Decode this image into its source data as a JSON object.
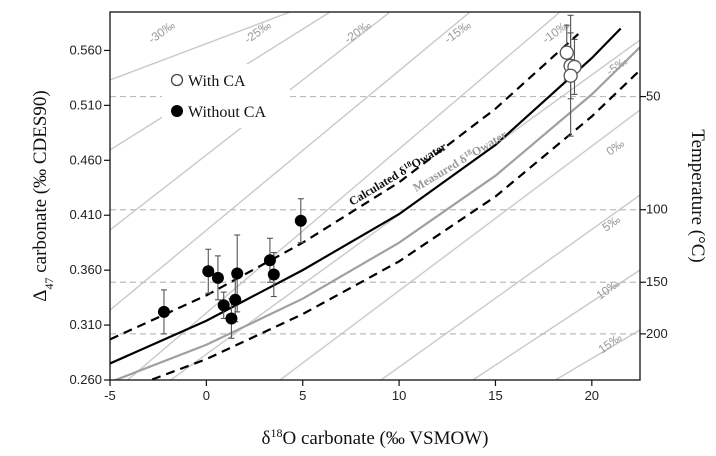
{
  "chart_data": {
    "type": "scatter",
    "xlabel": "δ18O carbonate (‰ VSMOW)",
    "xlabel_base": "δ",
    "xlabel_sup": "18",
    "xlabel_rest": "O carbonate (‰ VSMOW)",
    "ylabel": "Δ47 carbonate (‰ CDES90)",
    "ylabel_base": "Δ",
    "ylabel_sub": "47",
    "ylabel_rest": " carbonate (‰ CDES90)",
    "y2label": "Temperature (°C)",
    "xlim": [
      -5,
      22.5
    ],
    "ylim": [
      0.26,
      0.595
    ],
    "x_ticks": [
      -5,
      0,
      5,
      10,
      15,
      20
    ],
    "x_tick_labels": [
      "-5",
      "0",
      "5",
      "10",
      "15",
      "20"
    ],
    "y_ticks": [
      0.26,
      0.31,
      0.36,
      0.41,
      0.46,
      0.51,
      0.56
    ],
    "y_tick_labels": [
      "0.260",
      "0.310",
      "0.360",
      "0.410",
      "0.460",
      "0.510",
      "0.560"
    ],
    "temperature_ticks": [
      {
        "label": "50",
        "y": 0.518
      },
      {
        "label": "100",
        "y": 0.415
      },
      {
        "label": "150",
        "y": 0.349
      },
      {
        "label": "200",
        "y": 0.302
      }
    ],
    "grid": false,
    "isotherm_lines": true,
    "legend_position": "top-left",
    "legend": [
      {
        "name": "With CA",
        "marker": "open-circle"
      },
      {
        "name": "Without CA",
        "marker": "filled-circle"
      }
    ],
    "series": [
      {
        "name": "With CA",
        "marker": "open-circle",
        "points": [
          {
            "x": 18.7,
            "y": 0.558,
            "err": 0.025
          },
          {
            "x": 18.9,
            "y": 0.546,
            "err": 0.03
          },
          {
            "x": 19.1,
            "y": 0.545,
            "err": 0.025
          },
          {
            "x": 18.9,
            "y": 0.537,
            "err": 0.055
          }
        ]
      },
      {
        "name": "Without CA",
        "marker": "filled-circle",
        "points": [
          {
            "x": -2.2,
            "y": 0.322,
            "err": 0.02
          },
          {
            "x": 0.1,
            "y": 0.359,
            "err": 0.02
          },
          {
            "x": 0.6,
            "y": 0.353,
            "err": 0.02
          },
          {
            "x": 0.9,
            "y": 0.328,
            "err": 0.012
          },
          {
            "x": 1.3,
            "y": 0.316,
            "err": 0.018
          },
          {
            "x": 1.5,
            "y": 0.333,
            "err": 0.02
          },
          {
            "x": 1.6,
            "y": 0.357,
            "err": 0.035
          },
          {
            "x": 3.3,
            "y": 0.369,
            "err": 0.02
          },
          {
            "x": 3.5,
            "y": 0.356,
            "err": 0.02
          },
          {
            "x": 4.9,
            "y": 0.405,
            "err": 0.02
          }
        ]
      }
    ],
    "curves": [
      {
        "name": "Calculated δ18Owater",
        "style": "solid-black",
        "points": [
          [
            -5,
            0.275
          ],
          [
            0,
            0.314
          ],
          [
            5,
            0.36
          ],
          [
            10,
            0.411
          ],
          [
            15,
            0.474
          ],
          [
            20,
            0.553
          ],
          [
            21.5,
            0.58
          ]
        ]
      },
      {
        "name": "Measured δ18Owater",
        "style": "solid-gray",
        "points": [
          [
            -5,
            0.258
          ],
          [
            0,
            0.292
          ],
          [
            5,
            0.334
          ],
          [
            10,
            0.385
          ],
          [
            15,
            0.446
          ],
          [
            20,
            0.52
          ],
          [
            22.5,
            0.563
          ]
        ]
      },
      {
        "name": "",
        "style": "dashed-upper",
        "points": [
          [
            -5,
            0.297
          ],
          [
            0,
            0.337
          ],
          [
            5,
            0.385
          ],
          [
            10,
            0.44
          ],
          [
            15,
            0.507
          ],
          [
            19.3,
            0.575
          ]
        ]
      },
      {
        "name": "",
        "style": "dashed-lower",
        "points": [
          [
            -5,
            0.246
          ],
          [
            0,
            0.279
          ],
          [
            5,
            0.32
          ],
          [
            10,
            0.368
          ],
          [
            15,
            0.427
          ],
          [
            20,
            0.5
          ],
          [
            22.5,
            0.542
          ]
        ]
      }
    ],
    "isotherm_labels": [
      "-30‰",
      "-25‰",
      "-20‰",
      "-15‰",
      "-10‰",
      "-5‰",
      "0‰",
      "5‰",
      "10‰",
      "15‰"
    ],
    "curve_label_calc": {
      "base": "Calculated δ",
      "sup": "18",
      "rest": "Owater"
    },
    "curve_label_meas": {
      "base": "Measured δ",
      "sup": "18",
      "rest": "Owater"
    }
  }
}
